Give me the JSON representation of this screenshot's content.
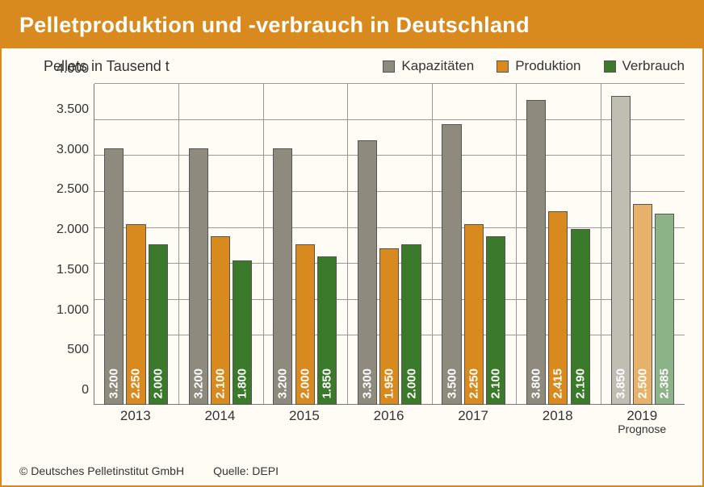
{
  "title": "Pelletproduktion und -verbrauch in Deutschland",
  "chart": {
    "type": "bar",
    "y_axis_title": "Pellets in Tausend t",
    "ylim_min": 0,
    "ylim_max": 4000,
    "ytick_step": 500,
    "yticks": [
      "0",
      "500",
      "1.000",
      "1.500",
      "2.000",
      "2.500",
      "3.000",
      "3.500",
      "4.000"
    ],
    "legend": [
      {
        "label": "Kapazitäten",
        "color": "#8f8a7e"
      },
      {
        "label": "Produktion",
        "color": "#d88a1e"
      },
      {
        "label": "Verbrauch",
        "color": "#3a7a2a"
      }
    ],
    "forecast_colors": {
      "Kapazitäten": "#c0bdb3",
      "Produktion": "#e6b26a",
      "Verbrauch": "#8cb388"
    },
    "background_color": "#fffcf5",
    "header_color": "#d88a1e",
    "grid_color": "#999999",
    "border_color": "#777777",
    "bar_border_color": "#555555",
    "bar_text_color": "#ffffff",
    "bar_value_text_fontsize": 15,
    "label_fontsize": 17,
    "title_fontsize": 27,
    "years": [
      {
        "year": "2013",
        "sub": "",
        "forecast": false,
        "values": {
          "Kapazitäten": 3200,
          "Produktion": 2250,
          "Verbrauch": 2000
        },
        "labels": {
          "Kapazitäten": "3.200",
          "Produktion": "2.250",
          "Verbrauch": "2.000"
        }
      },
      {
        "year": "2014",
        "sub": "",
        "forecast": false,
        "values": {
          "Kapazitäten": 3200,
          "Produktion": 2100,
          "Verbrauch": 1800
        },
        "labels": {
          "Kapazitäten": "3.200",
          "Produktion": "2.100",
          "Verbrauch": "1.800"
        }
      },
      {
        "year": "2015",
        "sub": "",
        "forecast": false,
        "values": {
          "Kapazitäten": 3200,
          "Produktion": 2000,
          "Verbrauch": 1850
        },
        "labels": {
          "Kapazitäten": "3.200",
          "Produktion": "2.000",
          "Verbrauch": "1.850"
        }
      },
      {
        "year": "2016",
        "sub": "",
        "forecast": false,
        "values": {
          "Kapazitäten": 3300,
          "Produktion": 1950,
          "Verbrauch": 2000
        },
        "labels": {
          "Kapazitäten": "3.300",
          "Produktion": "1.950",
          "Verbrauch": "2.000"
        }
      },
      {
        "year": "2017",
        "sub": "",
        "forecast": false,
        "values": {
          "Kapazitäten": 3500,
          "Produktion": 2250,
          "Verbrauch": 2100
        },
        "labels": {
          "Kapazitäten": "3.500",
          "Produktion": "2.250",
          "Verbrauch": "2.100"
        }
      },
      {
        "year": "2018",
        "sub": "",
        "forecast": false,
        "values": {
          "Kapazitäten": 3800,
          "Produktion": 2415,
          "Verbrauch": 2190
        },
        "labels": {
          "Kapazitäten": "3.800",
          "Produktion": "2.415",
          "Verbrauch": "2.190"
        }
      },
      {
        "year": "2019",
        "sub": "Prognose",
        "forecast": true,
        "values": {
          "Kapazitäten": 3850,
          "Produktion": 2500,
          "Verbrauch": 2385
        },
        "labels": {
          "Kapazitäten": "3.850",
          "Produktion": "2.500",
          "Verbrauch": "2.385"
        }
      }
    ]
  },
  "footer": {
    "copyright": "© Deutsches Pelletinstitut GmbH",
    "source": "Quelle: DEPI"
  }
}
